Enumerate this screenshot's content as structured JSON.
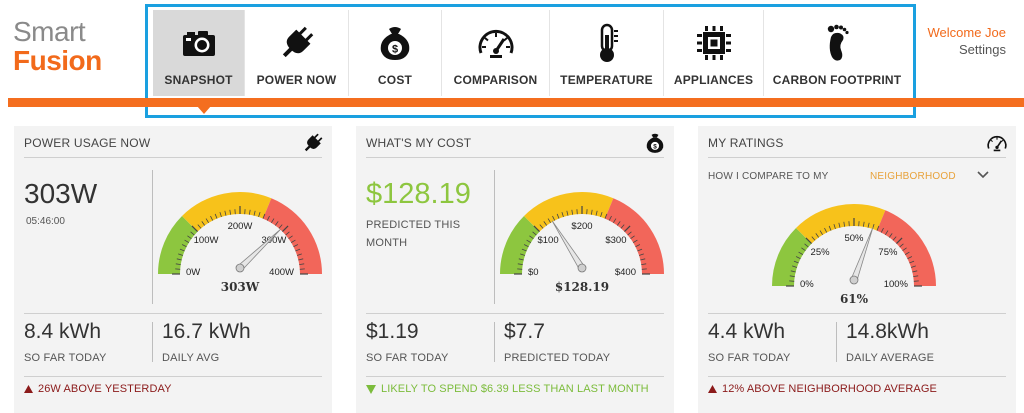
{
  "logo": {
    "line1": "Smart",
    "line2": "Fusion"
  },
  "nav": {
    "items": [
      {
        "label": "SNAPSHOT",
        "icon": "camera-icon",
        "active": true
      },
      {
        "label": "POWER NOW",
        "icon": "plug-icon",
        "active": false
      },
      {
        "label": "COST",
        "icon": "money-bag-icon",
        "active": false
      },
      {
        "label": "COMPARISON",
        "icon": "speedometer-icon",
        "active": false
      },
      {
        "label": "TEMPERATURE",
        "icon": "thermometer-icon",
        "active": false
      },
      {
        "label": "APPLIANCES",
        "icon": "chip-icon",
        "active": false
      },
      {
        "label": "CARBON FOOTPRINT",
        "icon": "footprint-icon",
        "active": false
      }
    ]
  },
  "user": {
    "welcome": "Welcome Joe",
    "settings": "Settings"
  },
  "colors": {
    "accent": "#f46e1f",
    "highlight_border": "#1aa0e0",
    "green": "#8dc63f",
    "yellow": "#f7c21b",
    "red": "#f2665a",
    "warn": "#8b1a1a"
  },
  "power": {
    "title": "POWER USAGE NOW",
    "value": "303W",
    "time": "05:46:00",
    "gauge": {
      "labels": [
        "0W",
        "100W",
        "200W",
        "300W",
        "400W"
      ],
      "readout": "303W",
      "value": 303,
      "min": 0,
      "max": 400
    },
    "stat1": {
      "value": "8.4 kWh",
      "label": "SO FAR TODAY"
    },
    "stat2": {
      "value": "16.7 kWh",
      "label": "DAILY AVG"
    },
    "footer": "26W ABOVE YESTERDAY"
  },
  "cost": {
    "title": "WHAT'S MY COST",
    "value": "$128.19",
    "subtitle": "PREDICTED THIS MONTH",
    "gauge": {
      "labels": [
        "$0",
        "$100",
        "$200",
        "$300",
        "$400"
      ],
      "readout": "$128.19",
      "value": 128.19,
      "min": 0,
      "max": 400
    },
    "stat1": {
      "value": "$1.19",
      "label": "SO FAR TODAY"
    },
    "stat2": {
      "value": "$7.7",
      "label": "PREDICTED TODAY"
    },
    "footer": "LIKELY TO SPEND $6.39 LESS THAN LAST MONTH"
  },
  "ratings": {
    "title": "MY RATINGS",
    "compare_label": "HOW I COMPARE TO MY",
    "compare_value": "NEIGHBORHOOD",
    "gauge": {
      "labels": [
        "0%",
        "25%",
        "50%",
        "75%",
        "100%"
      ],
      "readout": "61%",
      "value": 61,
      "min": 0,
      "max": 100
    },
    "stat1": {
      "value": "4.4 kWh",
      "label": "SO FAR TODAY"
    },
    "stat2": {
      "value": "14.8kWh",
      "label": "DAILY AVERAGE"
    },
    "footer": "12% ABOVE NEIGHBORHOOD AVERAGE"
  }
}
